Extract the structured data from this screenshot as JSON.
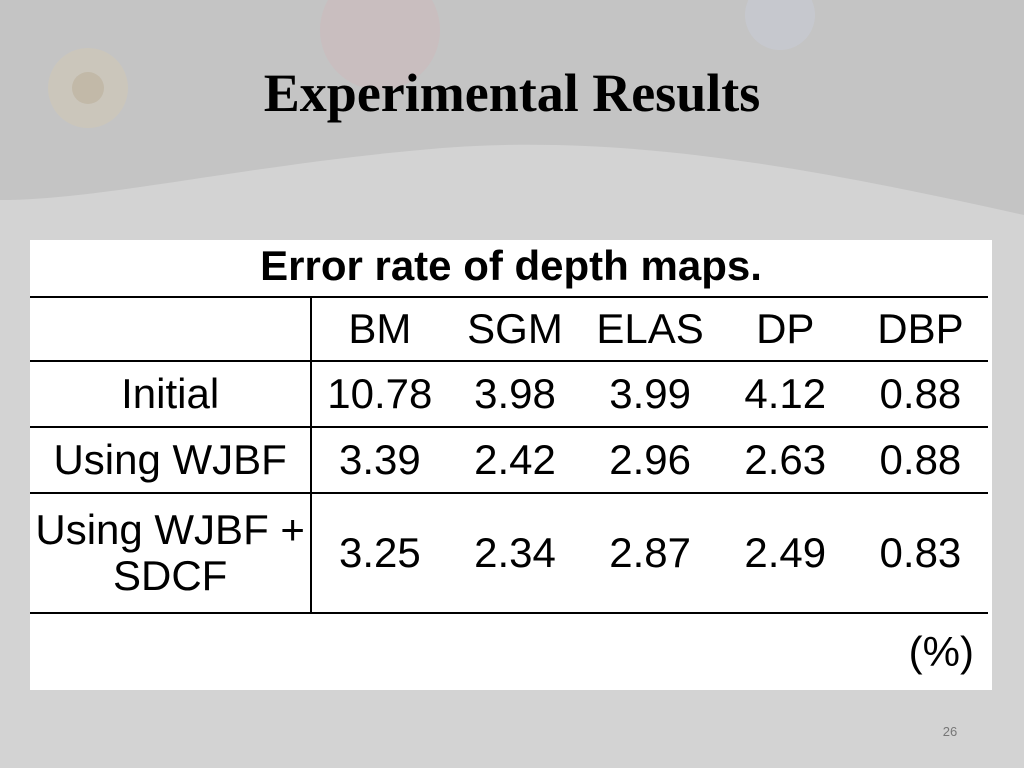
{
  "slide": {
    "title": "Experimental Results",
    "page_number": "26"
  },
  "table": {
    "caption": "Error rate of depth maps.",
    "columns": [
      "BM",
      "SGM",
      "ELAS",
      "DP",
      "DBP"
    ],
    "rows": [
      {
        "label": "Initial",
        "values": [
          "10.78",
          "3.98",
          "3.99",
          "4.12",
          "0.88"
        ]
      },
      {
        "label": "Using WJBF",
        "values": [
          "3.39",
          "2.42",
          "2.96",
          "2.63",
          "0.88"
        ]
      },
      {
        "label": "Using WJBF + SDCF",
        "values": [
          "3.25",
          "2.34",
          "2.87",
          "2.49",
          "0.83"
        ]
      }
    ],
    "unit": "(%)"
  }
}
